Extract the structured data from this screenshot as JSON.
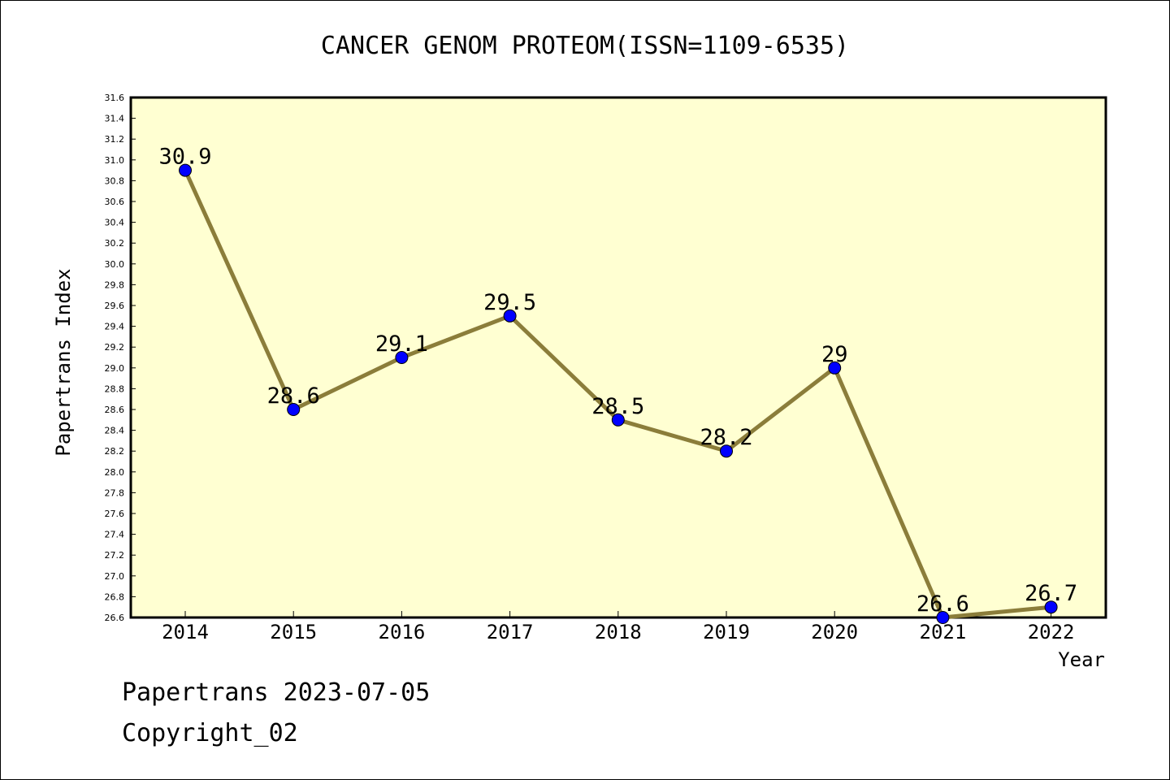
{
  "chart_data": {
    "type": "line",
    "title": "CANCER GENOM PROTEOM(ISSN=1109-6535)",
    "xlabel": "Year",
    "ylabel": "Papertrans Index",
    "categories": [
      "2014",
      "2015",
      "2016",
      "2017",
      "2018",
      "2019",
      "2020",
      "2021",
      "2022"
    ],
    "series": [
      {
        "values": [
          30.9,
          28.6,
          29.1,
          29.5,
          28.5,
          28.2,
          29.0,
          26.6,
          26.7
        ],
        "data_labels": [
          "30.9",
          "28.6",
          "29.1",
          "29.5",
          "28.5",
          "28.2",
          "29",
          "26.6",
          "26.7"
        ]
      }
    ],
    "ylim": [
      26.6,
      31.6
    ],
    "yticks": [
      "26.6",
      "26.8",
      "27.0",
      "27.2",
      "27.4",
      "27.6",
      "27.8",
      "28.0",
      "28.2",
      "28.4",
      "28.6",
      "28.8",
      "29.0",
      "29.2",
      "29.4",
      "29.6",
      "29.8",
      "30.0",
      "30.2",
      "30.4",
      "30.6",
      "30.8",
      "31.0",
      "31.2",
      "31.4",
      "31.6"
    ],
    "grid": false,
    "colors": {
      "plot_background": "#ffffd2",
      "line": "#8b7d3a",
      "marker": "#0000ff"
    }
  },
  "footer": {
    "line1": "Papertrans 2023-07-05",
    "line2": "Copyright_02"
  }
}
